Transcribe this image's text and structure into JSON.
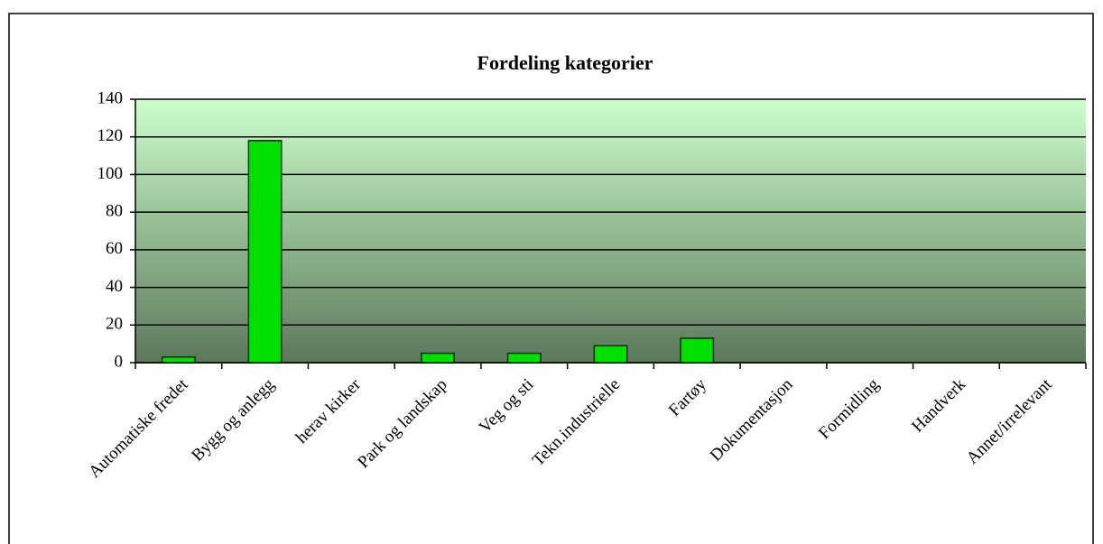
{
  "chart_data": {
    "type": "bar",
    "title": "Fordeling kategorier",
    "categories": [
      "Automatiske fredet",
      "Bygg og anlegg",
      "herav kirker",
      "Park og landskap",
      "Veg og sti",
      "Tekn.industrielle",
      "Fartøy",
      "Dokumentasjon",
      "Formidling",
      "Handverk",
      "Annet/irrelevant"
    ],
    "values": [
      3,
      118,
      0,
      5,
      5,
      9,
      13,
      0,
      0,
      0,
      0
    ],
    "color": "#00e000",
    "ylim": [
      0,
      140
    ],
    "yticks": [
      0,
      20,
      40,
      60,
      80,
      100,
      120,
      140
    ],
    "grid": true
  }
}
